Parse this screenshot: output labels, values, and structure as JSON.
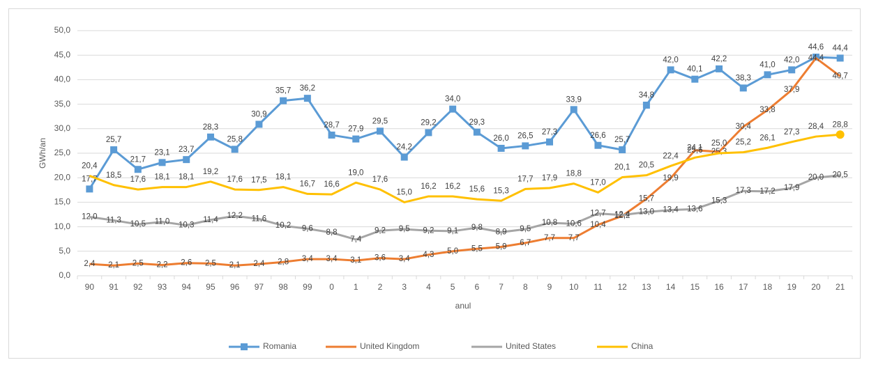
{
  "chart_data": {
    "type": "line",
    "x_label": "anul",
    "y_label": "GWh/an",
    "categories": [
      "90",
      "91",
      "92",
      "93",
      "94",
      "95",
      "96",
      "97",
      "98",
      "99",
      "0",
      "1",
      "2",
      "3",
      "4",
      "5",
      "6",
      "7",
      "8",
      "9",
      "10",
      "11",
      "12",
      "13",
      "14",
      "15",
      "16",
      "17",
      "18",
      "19",
      "20",
      "21"
    ],
    "ylim": [
      0,
      50
    ],
    "yticks": [
      {
        "value": 0,
        "label": "0,0"
      },
      {
        "value": 5,
        "label": "5,0"
      },
      {
        "value": 10,
        "label": "10,0"
      },
      {
        "value": 15,
        "label": "15,0"
      },
      {
        "value": 20,
        "label": "20,0"
      },
      {
        "value": 25,
        "label": "25,0"
      },
      {
        "value": 30,
        "label": "30,0"
      },
      {
        "value": 35,
        "label": "35,0"
      },
      {
        "value": 40,
        "label": "40,0"
      },
      {
        "value": 45,
        "label": "45,0"
      },
      {
        "value": 50,
        "label": "50,0"
      }
    ],
    "grid": true,
    "legend": "bottom",
    "series": [
      {
        "name": "Romania",
        "color": "#5b9bd5",
        "marker": "square",
        "values": [
          17.7,
          25.7,
          21.7,
          23.1,
          23.7,
          28.3,
          25.8,
          30.9,
          35.7,
          36.2,
          28.7,
          27.9,
          29.5,
          24.2,
          29.2,
          34.0,
          29.3,
          26.0,
          26.5,
          27.3,
          33.9,
          26.6,
          25.7,
          34.8,
          42.0,
          40.1,
          42.2,
          38.3,
          41.0,
          42.0,
          44.6,
          44.4
        ],
        "value_labels": [
          "17,7",
          "25,7",
          "21,7",
          "23,1",
          "23,7",
          "28,3",
          "25,8",
          "30,9",
          "35,7",
          "36,2",
          "28,7",
          "27,9",
          "29,5",
          "24,2",
          "29,2",
          "34,0",
          "29,3",
          "26,0",
          "26,5",
          "27,3",
          "33,9",
          "26,6",
          "25,7",
          "34,8",
          "42,0",
          "40,1",
          "42,2",
          "38,3",
          "41,0",
          "42,0",
          "44,6",
          "44,4"
        ]
      },
      {
        "name": "United Kingdom",
        "color": "#ed7d31",
        "values": [
          2.4,
          2.1,
          2.5,
          2.2,
          2.6,
          2.5,
          2.1,
          2.4,
          2.8,
          3.4,
          3.4,
          3.1,
          3.6,
          3.4,
          4.3,
          5.0,
          5.5,
          5.9,
          6.7,
          7.7,
          7.7,
          10.4,
          12.2,
          15.7,
          19.9,
          25.6,
          25.3,
          30.4,
          33.8,
          37.9,
          44.4,
          40.7
        ],
        "value_labels": [
          "2,4",
          "2,1",
          "2,5",
          "2,2",
          "2,6",
          "2,5",
          "2,1",
          "2,4",
          "2,8",
          "3,4",
          "3,4",
          "3,1",
          "3,6",
          "3,4",
          "4,3",
          "5,0",
          "5,5",
          "5,9",
          "6,7",
          "7,7",
          "7,7",
          "10,4",
          "12,2",
          "15,7",
          "19,9",
          "25,6",
          "25,3",
          "30,4",
          "33,8",
          "37,9",
          "44,4",
          "40,7"
        ]
      },
      {
        "name": "United States",
        "color": "#a5a5a5",
        "values": [
          12.0,
          11.3,
          10.5,
          11.0,
          10.3,
          11.4,
          12.2,
          11.6,
          10.2,
          9.6,
          8.8,
          7.4,
          9.2,
          9.5,
          9.2,
          9.1,
          9.8,
          8.9,
          9.5,
          10.8,
          10.6,
          12.7,
          12.4,
          13.0,
          13.4,
          13.6,
          15.3,
          17.3,
          17.2,
          17.9,
          20.0,
          20.5
        ],
        "value_labels": [
          "12,0",
          "11,3",
          "10,5",
          "11,0",
          "10,3",
          "11,4",
          "12,2",
          "11,6",
          "10,2",
          "9,6",
          "8,8",
          "7,4",
          "9,2",
          "9,5",
          "9,2",
          "9,1",
          "9,8",
          "8,9",
          "9,5",
          "10,8",
          "10,6",
          "12,7",
          "12,4",
          "13,0",
          "13,4",
          "13,6",
          "15,3",
          "17,3",
          "17,2",
          "17,9",
          "20,0",
          "20,5"
        ]
      },
      {
        "name": "China",
        "color": "#ffc000",
        "marker_last": "circle",
        "values": [
          20.4,
          18.5,
          17.6,
          18.1,
          18.1,
          19.2,
          17.6,
          17.5,
          18.1,
          16.7,
          16.6,
          19.0,
          17.6,
          15.0,
          16.2,
          16.2,
          15.6,
          15.3,
          17.7,
          17.9,
          18.8,
          17.0,
          20.1,
          20.5,
          22.4,
          24.1,
          25.0,
          25.2,
          26.1,
          27.3,
          28.4,
          28.8
        ],
        "value_labels": [
          "20,4",
          "18,5",
          "17,6",
          "18,1",
          "18,1",
          "19,2",
          "17,6",
          "17,5",
          "18,1",
          "16,7",
          "16,6",
          "19,0",
          "17,6",
          "15,0",
          "16,2",
          "16,2",
          "15,6",
          "15,3",
          "17,7",
          "17,9",
          "18,8",
          "17,0",
          "20,1",
          "20,5",
          "22,4",
          "24,1",
          "25,0",
          "25,2",
          "26,1",
          "27,3",
          "28,4",
          "28,8"
        ]
      }
    ]
  }
}
